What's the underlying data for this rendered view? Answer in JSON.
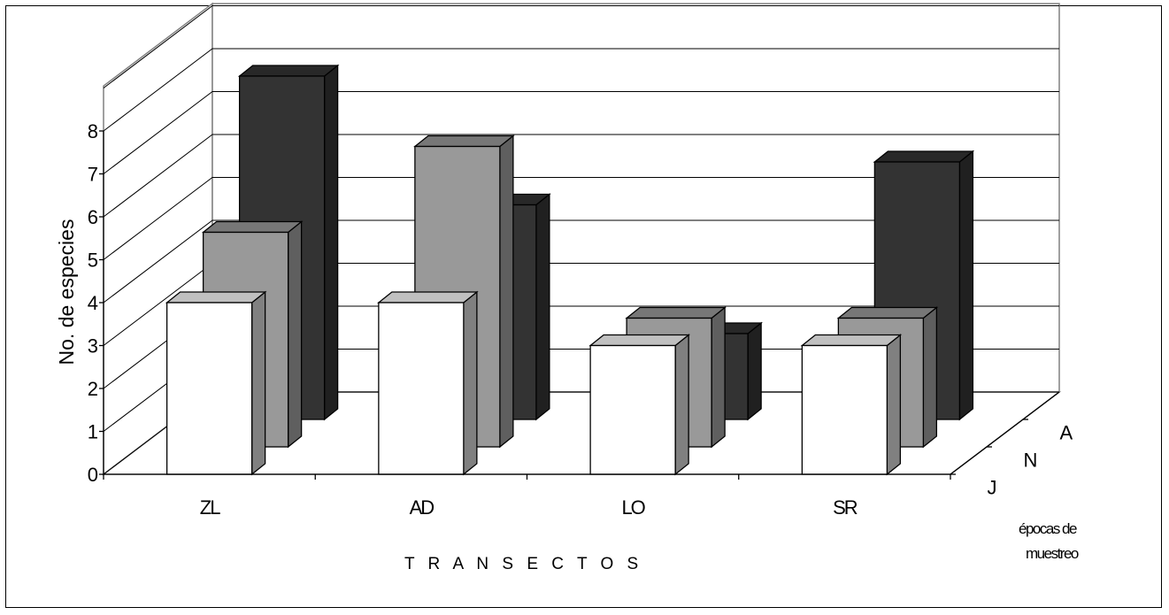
{
  "chart_data": {
    "type": "bar",
    "subtype": "3d-clustered-depth",
    "categories": [
      "ZL",
      "AD",
      "LO",
      "SR"
    ],
    "series": [
      {
        "name": "J",
        "values": [
          4,
          4,
          3,
          3
        ],
        "color": "#ffffff"
      },
      {
        "name": "N",
        "values": [
          5,
          7,
          3,
          3
        ],
        "color": "#999999"
      },
      {
        "name": "A",
        "values": [
          8,
          5,
          2,
          6
        ],
        "color": "#333333"
      }
    ],
    "xlabel": "T R A N S E C T O S",
    "ylabel": "No. de especies",
    "zlabel_line1": "épocas de",
    "zlabel_line2": "muestreo",
    "yticks": [
      "0",
      "1",
      "2",
      "3",
      "4",
      "5",
      "6",
      "7",
      "8"
    ],
    "ylim": [
      0,
      8
    ],
    "grid": true
  }
}
